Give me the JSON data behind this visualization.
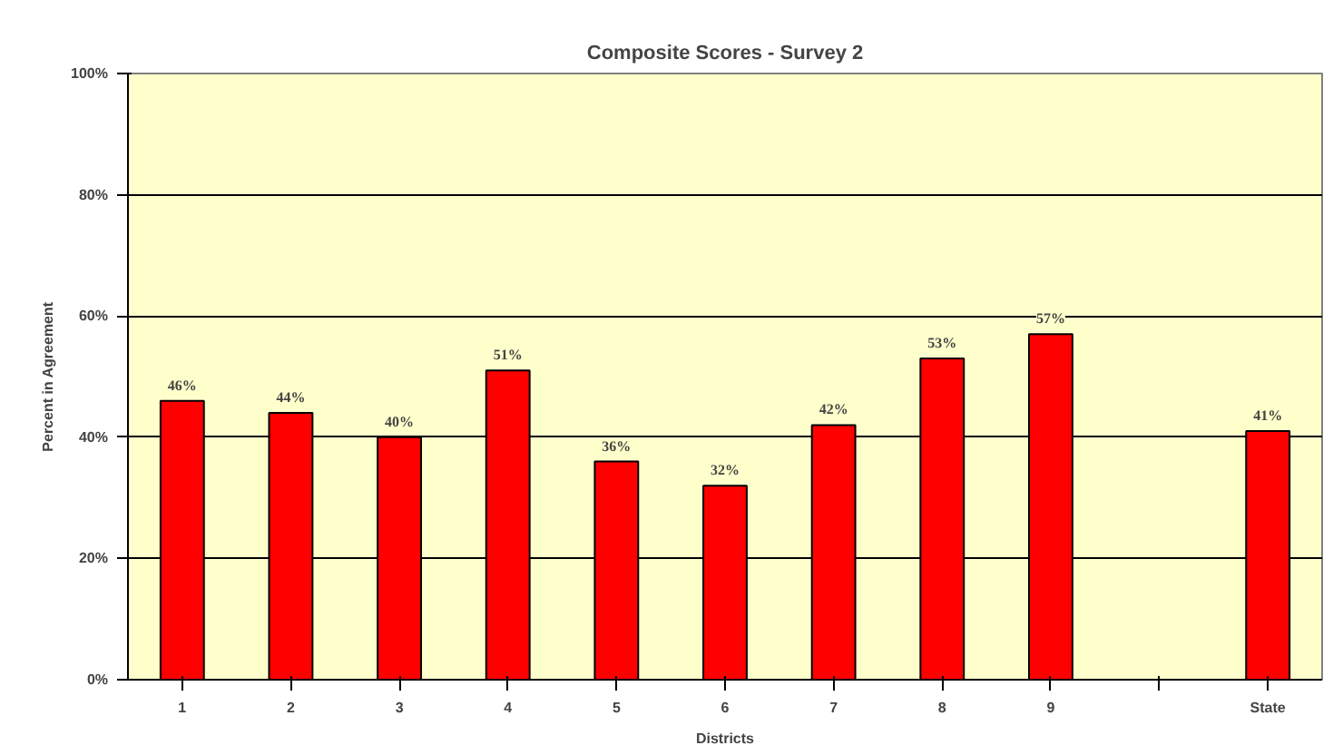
{
  "chart_data": {
    "type": "bar",
    "title": "Composite Scores - Survey 2",
    "xlabel": "Districts",
    "ylabel": "Percent in Agreement",
    "categories": [
      "1",
      "2",
      "3",
      "4",
      "5",
      "6",
      "7",
      "8",
      "9",
      null,
      "State"
    ],
    "values": [
      46,
      44,
      40,
      51,
      36,
      32,
      42,
      53,
      57,
      null,
      41
    ],
    "value_labels": [
      "46%",
      "44%",
      "40%",
      "51%",
      "36%",
      "32%",
      "42%",
      "53%",
      "57%",
      null,
      "41%"
    ],
    "color": "#ff0000",
    "ylim": [
      0,
      100
    ],
    "yticks": [
      {
        "value": 0,
        "label": "0%"
      },
      {
        "value": 20,
        "label": "20%"
      },
      {
        "value": 40,
        "label": "40%"
      },
      {
        "value": 60,
        "label": "60%"
      },
      {
        "value": 80,
        "label": "80%"
      },
      {
        "value": 100,
        "label": "100%"
      }
    ],
    "grid": "y"
  }
}
